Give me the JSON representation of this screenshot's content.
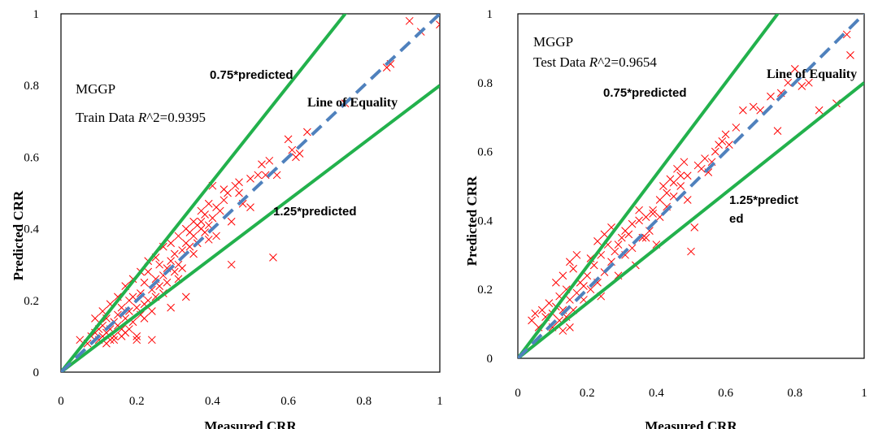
{
  "chart_data": [
    {
      "type": "scatter",
      "annotations": {
        "model": "MGGP",
        "r2_prefix": "Train Data ",
        "r2_symbol": "R",
        "r2_suffix": "^2=0.9395",
        "upper_line_label": "0.75*predicted",
        "lower_line_label_1": "1.25*predicted",
        "lower_line_label_2": "",
        "equality_label": "Line of Equality"
      },
      "xlabel": "Measured CRR",
      "ylabel": "Predicted CRR",
      "xlim": [
        0,
        1
      ],
      "ylim": [
        0,
        1
      ],
      "xticks": [
        0,
        0.2,
        0.4,
        0.6,
        0.8,
        1
      ],
      "yticks": [
        0,
        0.2,
        0.4,
        0.6,
        0.8,
        1
      ],
      "x_tick_labels": [
        "0",
        "0.2",
        "0.4",
        "0.6",
        "0.8",
        "1"
      ],
      "y_tick_labels": [
        "0",
        "0.2",
        "0.4",
        "0.6",
        "0.8",
        "1"
      ],
      "reference_lines": [
        {
          "name": "upper",
          "slope": 1.333,
          "color": "#22b14c",
          "style": "solid"
        },
        {
          "name": "lower",
          "slope": 0.8,
          "color": "#22b14c",
          "style": "solid"
        },
        {
          "name": "equality",
          "slope": 1,
          "color": "#4f81bd",
          "style": "dashed"
        }
      ],
      "marker_color": "#ff0000",
      "grid": false,
      "points": [
        [
          0.05,
          0.09
        ],
        [
          0.07,
          0.08
        ],
        [
          0.08,
          0.1
        ],
        [
          0.09,
          0.11
        ],
        [
          0.1,
          0.12
        ],
        [
          0.1,
          0.09
        ],
        [
          0.11,
          0.1
        ],
        [
          0.11,
          0.13
        ],
        [
          0.12,
          0.11
        ],
        [
          0.12,
          0.15
        ],
        [
          0.13,
          0.12
        ],
        [
          0.13,
          0.09
        ],
        [
          0.14,
          0.14
        ],
        [
          0.14,
          0.1
        ],
        [
          0.15,
          0.13
        ],
        [
          0.15,
          0.16
        ],
        [
          0.16,
          0.12
        ],
        [
          0.16,
          0.18
        ],
        [
          0.17,
          0.15
        ],
        [
          0.17,
          0.11
        ],
        [
          0.18,
          0.17
        ],
        [
          0.18,
          0.2
        ],
        [
          0.19,
          0.14
        ],
        [
          0.19,
          0.21
        ],
        [
          0.2,
          0.18
        ],
        [
          0.2,
          0.09
        ],
        [
          0.21,
          0.22
        ],
        [
          0.21,
          0.16
        ],
        [
          0.22,
          0.25
        ],
        [
          0.22,
          0.19
        ],
        [
          0.23,
          0.2
        ],
        [
          0.23,
          0.28
        ],
        [
          0.24,
          0.23
        ],
        [
          0.24,
          0.09
        ],
        [
          0.25,
          0.26
        ],
        [
          0.25,
          0.21
        ],
        [
          0.26,
          0.24
        ],
        [
          0.26,
          0.3
        ],
        [
          0.27,
          0.27
        ],
        [
          0.27,
          0.22
        ],
        [
          0.28,
          0.29
        ],
        [
          0.28,
          0.25
        ],
        [
          0.29,
          0.31
        ],
        [
          0.29,
          0.18
        ],
        [
          0.3,
          0.28
        ],
        [
          0.3,
          0.33
        ],
        [
          0.31,
          0.3
        ],
        [
          0.31,
          0.26
        ],
        [
          0.32,
          0.34
        ],
        [
          0.32,
          0.29
        ],
        [
          0.33,
          0.36
        ],
        [
          0.33,
          0.21
        ],
        [
          0.34,
          0.35
        ],
        [
          0.34,
          0.39
        ],
        [
          0.35,
          0.38
        ],
        [
          0.35,
          0.33
        ],
        [
          0.36,
          0.41
        ],
        [
          0.36,
          0.36
        ],
        [
          0.37,
          0.4
        ],
        [
          0.37,
          0.42
        ],
        [
          0.38,
          0.39
        ],
        [
          0.38,
          0.44
        ],
        [
          0.39,
          0.41
        ],
        [
          0.39,
          0.37
        ],
        [
          0.4,
          0.43
        ],
        [
          0.4,
          0.52
        ],
        [
          0.41,
          0.46
        ],
        [
          0.41,
          0.38
        ],
        [
          0.42,
          0.45
        ],
        [
          0.43,
          0.48
        ],
        [
          0.44,
          0.5
        ],
        [
          0.45,
          0.42
        ],
        [
          0.45,
          0.3
        ],
        [
          0.46,
          0.52
        ],
        [
          0.47,
          0.53
        ],
        [
          0.48,
          0.47
        ],
        [
          0.5,
          0.46
        ],
        [
          0.52,
          0.55
        ],
        [
          0.54,
          0.55
        ],
        [
          0.55,
          0.59
        ],
        [
          0.56,
          0.32
        ],
        [
          0.57,
          0.55
        ],
        [
          0.6,
          0.65
        ],
        [
          0.61,
          0.62
        ],
        [
          0.62,
          0.6
        ],
        [
          0.63,
          0.61
        ],
        [
          0.65,
          0.67
        ],
        [
          0.75,
          0.75
        ],
        [
          0.86,
          0.85
        ],
        [
          0.87,
          0.86
        ],
        [
          0.92,
          0.98
        ],
        [
          0.95,
          0.95
        ],
        [
          1.0,
          0.97
        ],
        [
          0.12,
          0.08
        ],
        [
          0.14,
          0.09
        ],
        [
          0.16,
          0.1
        ],
        [
          0.18,
          0.12
        ],
        [
          0.2,
          0.1
        ],
        [
          0.22,
          0.15
        ],
        [
          0.24,
          0.17
        ],
        [
          0.09,
          0.15
        ],
        [
          0.11,
          0.17
        ],
        [
          0.13,
          0.19
        ],
        [
          0.15,
          0.21
        ],
        [
          0.17,
          0.24
        ],
        [
          0.19,
          0.26
        ],
        [
          0.21,
          0.28
        ],
        [
          0.23,
          0.31
        ],
        [
          0.25,
          0.32
        ],
        [
          0.27,
          0.35
        ],
        [
          0.29,
          0.36
        ],
        [
          0.31,
          0.38
        ],
        [
          0.33,
          0.4
        ],
        [
          0.35,
          0.42
        ],
        [
          0.37,
          0.45
        ],
        [
          0.39,
          0.47
        ],
        [
          0.43,
          0.51
        ],
        [
          0.47,
          0.5
        ],
        [
          0.5,
          0.54
        ],
        [
          0.53,
          0.58
        ]
      ]
    },
    {
      "type": "scatter",
      "annotations": {
        "model": "MGGP",
        "r2_prefix": "Test Data ",
        "r2_symbol": "R",
        "r2_suffix": "^2=0.9654",
        "upper_line_label": "0.75*predicted",
        "lower_line_label_1": "1.25*predict",
        "lower_line_label_2": "ed",
        "equality_label": "Line of Equality"
      },
      "xlabel": "Measured CRR",
      "ylabel": "Predicted CRR",
      "xlim": [
        0,
        1
      ],
      "ylim": [
        0,
        1
      ],
      "xticks": [
        0,
        0.2,
        0.4,
        0.6,
        0.8,
        1
      ],
      "yticks": [
        0,
        0.2,
        0.4,
        0.6,
        0.8,
        1
      ],
      "x_tick_labels": [
        "0",
        "0.2",
        "0.4",
        "0.6",
        "0.8",
        "1"
      ],
      "y_tick_labels": [
        "0",
        "0.2",
        "0.4",
        "0.6",
        "0.8",
        "1"
      ],
      "reference_lines": [
        {
          "name": "upper",
          "slope": 1.333,
          "color": "#22b14c",
          "style": "solid"
        },
        {
          "name": "lower",
          "slope": 0.8,
          "color": "#22b14c",
          "style": "solid"
        },
        {
          "name": "equality",
          "slope": 1,
          "color": "#4f81bd",
          "style": "dashed"
        }
      ],
      "marker_color": "#ff0000",
      "grid": false,
      "points": [
        [
          0.04,
          0.11
        ],
        [
          0.05,
          0.13
        ],
        [
          0.06,
          0.09
        ],
        [
          0.07,
          0.14
        ],
        [
          0.08,
          0.12
        ],
        [
          0.09,
          0.16
        ],
        [
          0.1,
          0.13
        ],
        [
          0.1,
          0.09
        ],
        [
          0.11,
          0.15
        ],
        [
          0.12,
          0.18
        ],
        [
          0.12,
          0.11
        ],
        [
          0.13,
          0.14
        ],
        [
          0.13,
          0.08
        ],
        [
          0.14,
          0.2
        ],
        [
          0.14,
          0.12
        ],
        [
          0.15,
          0.17
        ],
        [
          0.15,
          0.09
        ],
        [
          0.16,
          0.26
        ],
        [
          0.16,
          0.14
        ],
        [
          0.17,
          0.19
        ],
        [
          0.18,
          0.22
        ],
        [
          0.19,
          0.17
        ],
        [
          0.2,
          0.24
        ],
        [
          0.21,
          0.2
        ],
        [
          0.22,
          0.27
        ],
        [
          0.23,
          0.22
        ],
        [
          0.24,
          0.3
        ],
        [
          0.24,
          0.18
        ],
        [
          0.25,
          0.25
        ],
        [
          0.26,
          0.33
        ],
        [
          0.27,
          0.28
        ],
        [
          0.28,
          0.31
        ],
        [
          0.29,
          0.24
        ],
        [
          0.3,
          0.35
        ],
        [
          0.31,
          0.3
        ],
        [
          0.32,
          0.36
        ],
        [
          0.33,
          0.32
        ],
        [
          0.34,
          0.27
        ],
        [
          0.35,
          0.4
        ],
        [
          0.36,
          0.35
        ],
        [
          0.37,
          0.41
        ],
        [
          0.38,
          0.37
        ],
        [
          0.39,
          0.43
        ],
        [
          0.4,
          0.33
        ],
        [
          0.41,
          0.46
        ],
        [
          0.42,
          0.5
        ],
        [
          0.43,
          0.44
        ],
        [
          0.44,
          0.52
        ],
        [
          0.45,
          0.47
        ],
        [
          0.46,
          0.55
        ],
        [
          0.47,
          0.5
        ],
        [
          0.48,
          0.57
        ],
        [
          0.49,
          0.53
        ],
        [
          0.5,
          0.31
        ],
        [
          0.51,
          0.38
        ],
        [
          0.52,
          0.56
        ],
        [
          0.54,
          0.58
        ],
        [
          0.55,
          0.54
        ],
        [
          0.57,
          0.6
        ],
        [
          0.58,
          0.62
        ],
        [
          0.6,
          0.65
        ],
        [
          0.61,
          0.62
        ],
        [
          0.63,
          0.67
        ],
        [
          0.65,
          0.72
        ],
        [
          0.68,
          0.73
        ],
        [
          0.7,
          0.72
        ],
        [
          0.73,
          0.76
        ],
        [
          0.75,
          0.66
        ],
        [
          0.76,
          0.77
        ],
        [
          0.78,
          0.8
        ],
        [
          0.8,
          0.84
        ],
        [
          0.82,
          0.79
        ],
        [
          0.84,
          0.8
        ],
        [
          0.87,
          0.72
        ],
        [
          0.92,
          0.74
        ],
        [
          0.95,
          0.94
        ],
        [
          0.96,
          0.88
        ],
        [
          0.11,
          0.22
        ],
        [
          0.13,
          0.24
        ],
        [
          0.15,
          0.28
        ],
        [
          0.17,
          0.3
        ],
        [
          0.19,
          0.21
        ],
        [
          0.21,
          0.29
        ],
        [
          0.23,
          0.34
        ],
        [
          0.25,
          0.36
        ],
        [
          0.27,
          0.38
        ],
        [
          0.29,
          0.33
        ],
        [
          0.31,
          0.37
        ],
        [
          0.33,
          0.39
        ],
        [
          0.35,
          0.43
        ],
        [
          0.37,
          0.35
        ],
        [
          0.39,
          0.42
        ],
        [
          0.41,
          0.41
        ],
        [
          0.43,
          0.48
        ],
        [
          0.45,
          0.51
        ],
        [
          0.47,
          0.53
        ],
        [
          0.49,
          0.46
        ],
        [
          0.53,
          0.55
        ],
        [
          0.56,
          0.57
        ],
        [
          0.59,
          0.63
        ]
      ]
    }
  ]
}
